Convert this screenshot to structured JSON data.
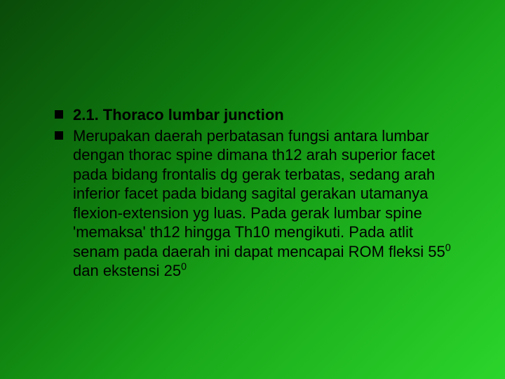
{
  "slide": {
    "background_gradient": [
      "#0a4a0a",
      "#0e7d0e",
      "#1aa81a",
      "#2bd52b"
    ],
    "bullets": [
      {
        "text": "2.1. Thoraco lumbar junction",
        "bold": true
      },
      {
        "text": "Merupakan daerah perbatasan fungsi antara lumbar dengan thorac spine dimana th12 arah superior facet pada bidang frontalis dg gerak terbatas, sedang arah inferior facet pada bidang sagital gerakan utamanya flexion-extension yg luas. Pada gerak lumbar spine 'memaksa' th12 hingga Th10 mengikuti. Pada atlit senam pada daerah ini dapat mencapai ROM fleksi 55",
        "sup1": "0",
        "text2": " dan ekstensi 25",
        "sup2": "0",
        "bold": false
      }
    ],
    "bullet_color": "#000000",
    "text_color": "#000000",
    "fontsize": 22
  }
}
